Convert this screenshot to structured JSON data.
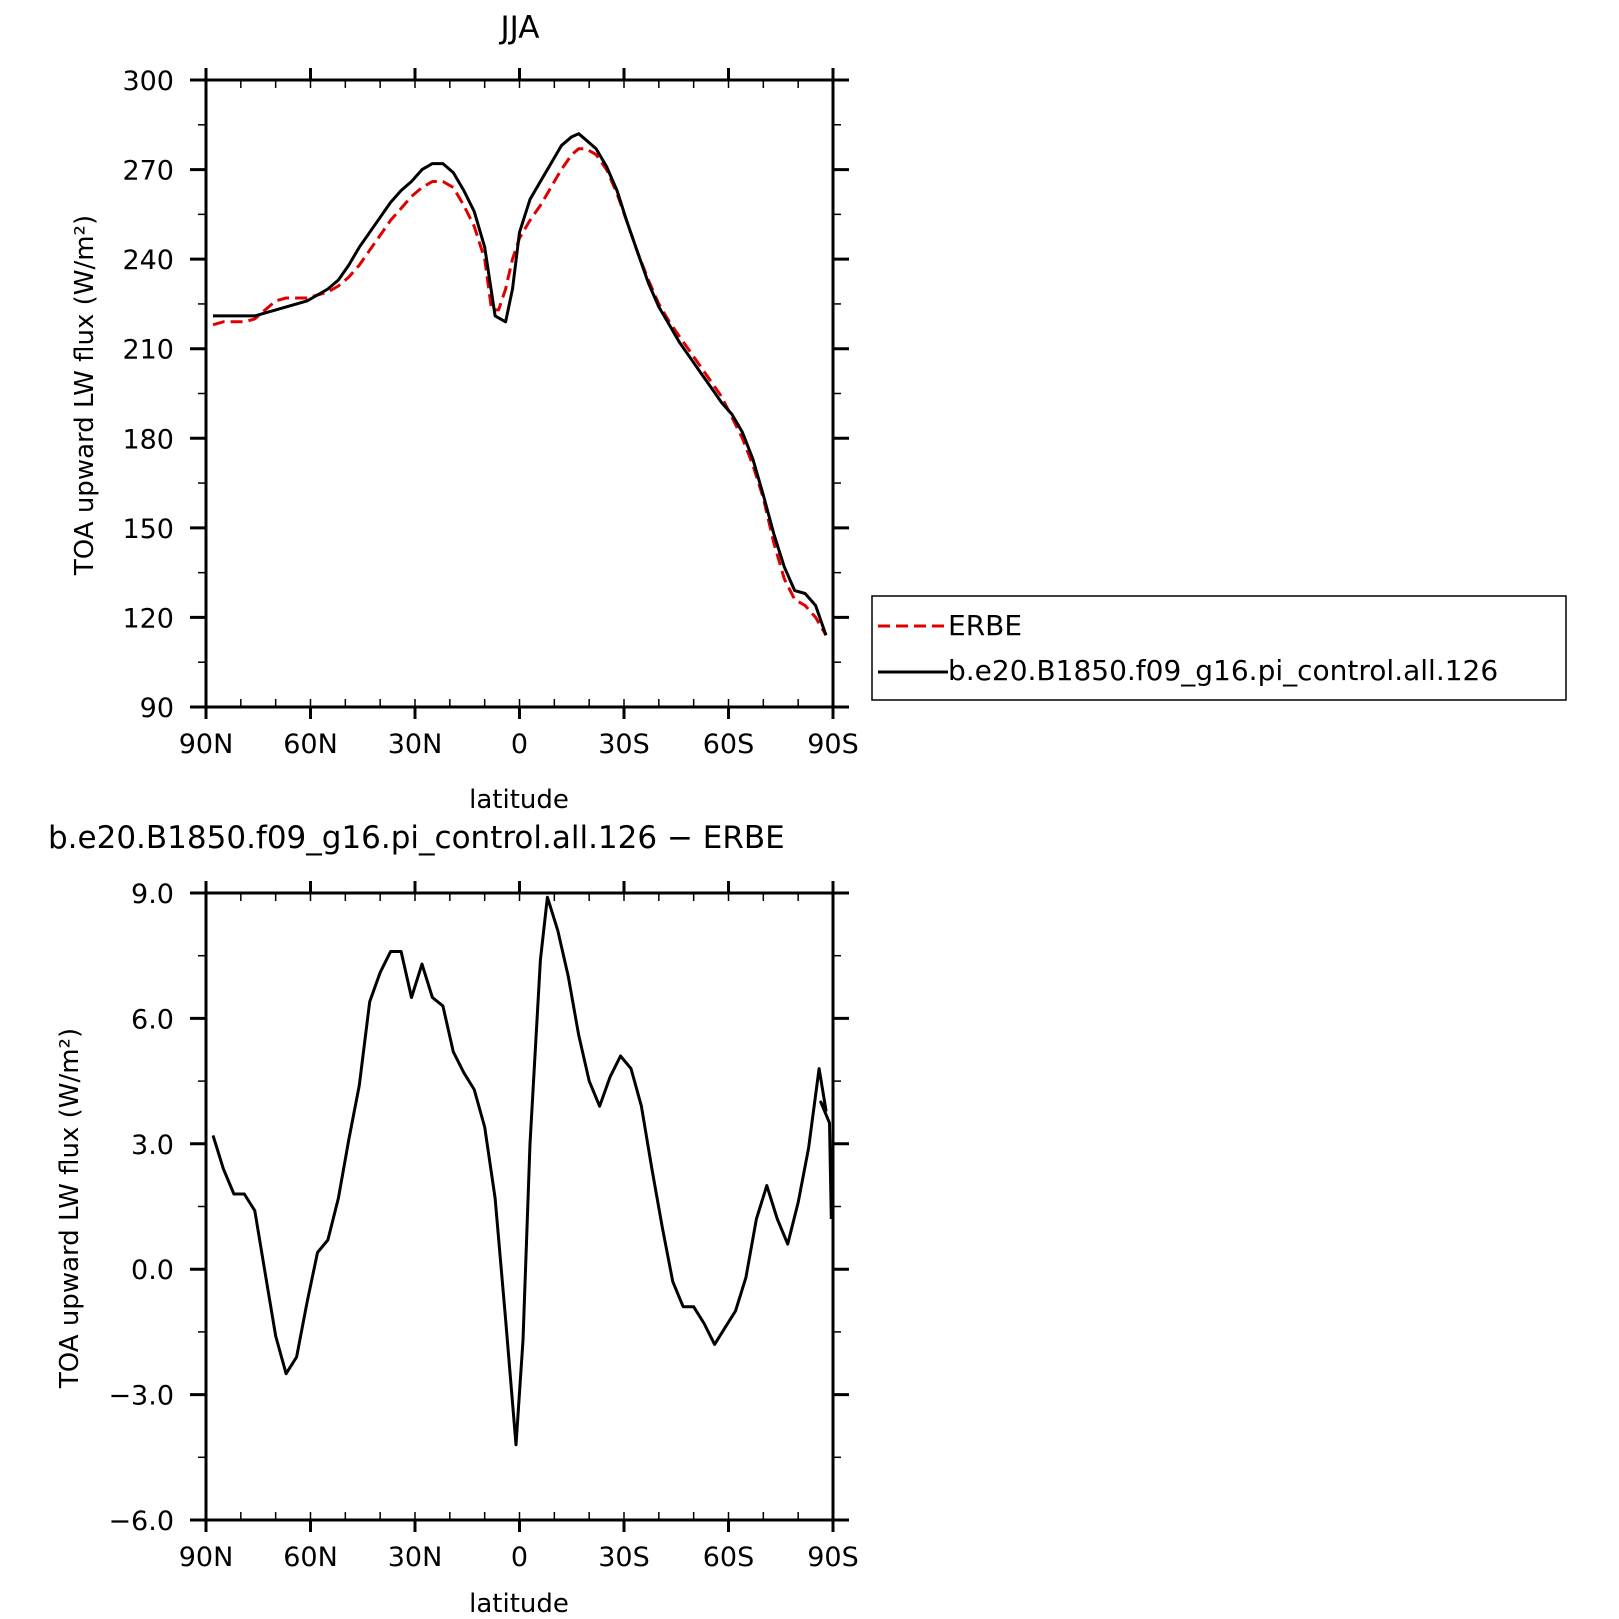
{
  "chart_data": [
    {
      "type": "line",
      "title": "JJA",
      "xlabel": "latitude",
      "ylabel": "TOA upward LW flux (W/m²)",
      "xlim": [
        90,
        -90
      ],
      "ylim": [
        90,
        300
      ],
      "xticks": [
        90,
        60,
        30,
        0,
        -30,
        -60,
        -90
      ],
      "xtick_labels": [
        "90N",
        "60N",
        "30N",
        "0",
        "30S",
        "60S",
        "90S"
      ],
      "yticks": [
        90,
        120,
        150,
        180,
        210,
        240,
        270,
        300
      ],
      "ytick_labels": [
        "90",
        "120",
        "150",
        "180",
        "210",
        "240",
        "270",
        "300"
      ],
      "legend": "right",
      "series": [
        {
          "name": "ERBE",
          "color": "#e00000",
          "style": "dashed",
          "points": [
            [
              88,
              218
            ],
            [
              85,
              219
            ],
            [
              82,
              219
            ],
            [
              79,
              219
            ],
            [
              76,
              220
            ],
            [
              73,
              223
            ],
            [
              70,
              226
            ],
            [
              67,
              227
            ],
            [
              64,
              227
            ],
            [
              61,
              227
            ],
            [
              58,
              228
            ],
            [
              55,
              229
            ],
            [
              52,
              231
            ],
            [
              49,
              234
            ],
            [
              46,
              238
            ],
            [
              43,
              243
            ],
            [
              40,
              248
            ],
            [
              37,
              253
            ],
            [
              34,
              257
            ],
            [
              31,
              261
            ],
            [
              28,
              264
            ],
            [
              25,
              266
            ],
            [
              22,
              266
            ],
            [
              19,
              264
            ],
            [
              16,
              258
            ],
            [
              13,
              251
            ],
            [
              10,
              240
            ],
            [
              8,
              223
            ],
            [
              6,
              223
            ],
            [
              4,
              230
            ],
            [
              2,
              240
            ],
            [
              0,
              247
            ],
            [
              -3,
              253
            ],
            [
              -6,
              258
            ],
            [
              -9,
              264
            ],
            [
              -12,
              270
            ],
            [
              -15,
              275
            ],
            [
              -17,
              277
            ],
            [
              -19,
              277
            ],
            [
              -22,
              275
            ],
            [
              -25,
              270
            ],
            [
              -28,
              262
            ],
            [
              -31,
              252
            ],
            [
              -34,
              242
            ],
            [
              -37,
              233
            ],
            [
              -40,
              225
            ],
            [
              -43,
              219
            ],
            [
              -46,
              214
            ],
            [
              -49,
              209
            ],
            [
              -52,
              204
            ],
            [
              -55,
              199
            ],
            [
              -58,
              194
            ],
            [
              -61,
              187
            ],
            [
              -64,
              180
            ],
            [
              -67,
              171
            ],
            [
              -70,
              160
            ],
            [
              -73,
              145
            ],
            [
              -76,
              133
            ],
            [
              -79,
              126
            ],
            [
              -82,
              124
            ],
            [
              -85,
              120
            ],
            [
              -88,
              114
            ]
          ]
        },
        {
          "name": "b.e20.B1850.f09_g16.pi_control.all.126",
          "color": "#000000",
          "style": "solid",
          "points": [
            [
              88,
              221
            ],
            [
              85,
              221
            ],
            [
              82,
              221
            ],
            [
              79,
              221
            ],
            [
              76,
              221
            ],
            [
              73,
              222
            ],
            [
              70,
              223
            ],
            [
              67,
              224
            ],
            [
              64,
              225
            ],
            [
              61,
              226
            ],
            [
              58,
              228
            ],
            [
              55,
              230
            ],
            [
              52,
              233
            ],
            [
              49,
              238
            ],
            [
              46,
              244
            ],
            [
              43,
              249
            ],
            [
              40,
              254
            ],
            [
              37,
              259
            ],
            [
              34,
              263
            ],
            [
              31,
              266
            ],
            [
              28,
              270
            ],
            [
              25,
              272
            ],
            [
              22,
              272
            ],
            [
              19,
              269
            ],
            [
              16,
              263
            ],
            [
              13,
              256
            ],
            [
              10,
              244
            ],
            [
              7,
              221
            ],
            [
              4,
              219
            ],
            [
              2,
              230
            ],
            [
              0,
              249
            ],
            [
              -3,
              260
            ],
            [
              -6,
              266
            ],
            [
              -9,
              272
            ],
            [
              -12,
              278
            ],
            [
              -15,
              281
            ],
            [
              -17,
              282
            ],
            [
              -19,
              280
            ],
            [
              -22,
              277
            ],
            [
              -25,
              271
            ],
            [
              -28,
              263
            ],
            [
              -31,
              252
            ],
            [
              -34,
              242
            ],
            [
              -37,
              232
            ],
            [
              -40,
              224
            ],
            [
              -43,
              218
            ],
            [
              -46,
              212
            ],
            [
              -49,
              207
            ],
            [
              -52,
              202
            ],
            [
              -55,
              197
            ],
            [
              -58,
              192
            ],
            [
              -61,
              188
            ],
            [
              -64,
              182
            ],
            [
              -67,
              173
            ],
            [
              -70,
              161
            ],
            [
              -73,
              148
            ],
            [
              -76,
              137
            ],
            [
              -79,
              129
            ],
            [
              -82,
              128
            ],
            [
              -85,
              124
            ],
            [
              -88,
              114
            ]
          ]
        }
      ]
    },
    {
      "type": "line",
      "title": "b.e20.B1850.f09_g16.pi_control.all.126 − ERBE",
      "xlabel": "latitude",
      "ylabel": "TOA upward LW flux (W/m²)",
      "xlim": [
        90,
        -90
      ],
      "ylim": [
        -6,
        9
      ],
      "xticks": [
        90,
        60,
        30,
        0,
        -30,
        -60,
        -90
      ],
      "xtick_labels": [
        "90N",
        "60N",
        "30N",
        "0",
        "30S",
        "60S",
        "90S"
      ],
      "yticks": [
        -6,
        -3,
        0,
        3,
        6,
        9
      ],
      "ytick_labels": [
        "−6.0",
        "−3.0",
        "0.0",
        "3.0",
        "6.0",
        "9.0"
      ],
      "series": [
        {
          "color": "#000000",
          "style": "solid",
          "points": [
            [
              88,
              3.2
            ],
            [
              85,
              2.4
            ],
            [
              82,
              1.8
            ],
            [
              79,
              1.8
            ],
            [
              76,
              1.4
            ],
            [
              73,
              -0.1
            ],
            [
              70,
              -1.6
            ],
            [
              67,
              -2.5
            ],
            [
              64,
              -2.1
            ],
            [
              61,
              -0.8
            ],
            [
              58,
              0.4
            ],
            [
              55,
              0.7
            ],
            [
              52,
              1.7
            ],
            [
              49,
              3.1
            ],
            [
              46,
              4.4
            ],
            [
              43,
              6.4
            ],
            [
              40,
              7.1
            ],
            [
              37,
              7.6
            ],
            [
              34,
              7.6
            ],
            [
              31,
              6.5
            ],
            [
              28,
              7.3
            ],
            [
              25,
              6.5
            ],
            [
              22,
              6.3
            ],
            [
              19,
              5.2
            ],
            [
              16,
              4.7
            ],
            [
              13,
              4.3
            ],
            [
              10,
              3.4
            ],
            [
              7,
              1.7
            ],
            [
              4,
              -1.2
            ],
            [
              1,
              -4.2
            ],
            [
              -1,
              -1.7
            ],
            [
              -3,
              3.0
            ],
            [
              -6,
              7.4
            ],
            [
              -8,
              8.9
            ],
            [
              -11,
              8.1
            ],
            [
              -14,
              7.0
            ],
            [
              -17,
              5.6
            ],
            [
              -20,
              4.5
            ],
            [
              -23,
              3.9
            ],
            [
              -26,
              4.6
            ],
            [
              -29,
              5.1
            ],
            [
              -32,
              4.8
            ],
            [
              -35,
              3.9
            ],
            [
              -38,
              2.4
            ],
            [
              -41,
              1.0
            ],
            [
              -44,
              -0.3
            ],
            [
              -47,
              -0.9
            ],
            [
              -50,
              -0.9
            ],
            [
              -53,
              -1.3
            ],
            [
              -56,
              -1.8
            ],
            [
              -59,
              -1.4
            ],
            [
              -62,
              -1.0
            ],
            [
              -65,
              -0.2
            ],
            [
              -68,
              1.2
            ],
            [
              -71,
              2.0
            ],
            [
              -74,
              1.2
            ],
            [
              -77,
              0.6
            ],
            [
              -80,
              1.6
            ],
            [
              -83,
              2.9
            ],
            [
              -86,
              4.8
            ],
            [
              -88,
              3.8
            ],
            [
              -86.5,
              4.0
            ],
            [
              -89,
              3.5
            ],
            [
              -89.5,
              1.2
            ]
          ]
        }
      ]
    }
  ]
}
